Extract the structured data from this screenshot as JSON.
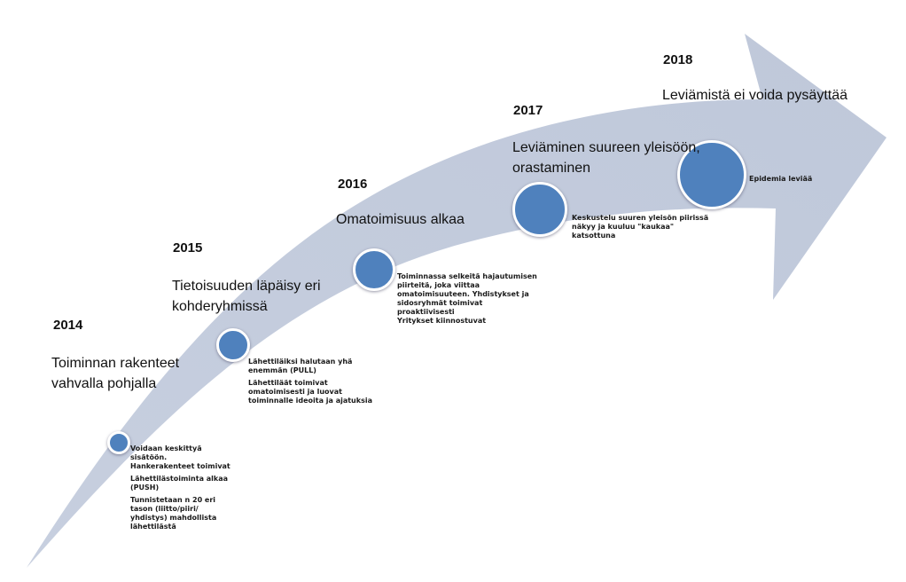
{
  "colors": {
    "arrow_fill": "#c3cbdc",
    "dot_fill": "#4f81bd",
    "dot_border": "#ffffff"
  },
  "milestones": [
    {
      "year": "2014",
      "phase": [
        "Toiminnan rakenteet",
        "vahvalla pohjalla"
      ],
      "notes": [
        [
          "Voidaan keskittyä",
          "sisätöön.",
          "Hankerakenteet toimivat"
        ],
        [
          "Lähettilästoiminta alkaa",
          "(PUSH)"
        ],
        [
          "Tunnistetaan n 20 eri",
          "tason (liitto/piiri/",
          "yhdistys) mahdollista",
          "lähettilästä"
        ]
      ]
    },
    {
      "year": "2015",
      "phase": [
        "Tietoisuuden läpäisy eri",
        "kohderyhmissä"
      ],
      "notes": [
        [
          "Lähettiläiksi halutaan yhä",
          "enemmän (PULL)"
        ],
        [
          "Lähettiläät toimivat",
          "omatoimisesti ja luovat",
          "toiminnalle ideoita ja ajatuksia"
        ]
      ]
    },
    {
      "year": "2016",
      "phase": [
        "Omatoimisuus alkaa"
      ],
      "notes": [
        [
          "Toiminnassa selkeitä hajautumisen",
          "piirteitä, joka viittaa",
          "omatoimisuuteen. Yhdistykset ja",
          "sidosryhmät toimivat",
          "proaktiivisesti",
          "Yritykset kiinnostuvat"
        ]
      ]
    },
    {
      "year": "2017",
      "phase": [
        "Leviäminen suureen yleisöön,",
        "orastaminen"
      ],
      "notes": [
        [
          "Keskustelu suuren yleisön piirissä",
          "näkyy ja kuuluu \"kaukaa\"",
          "katsottuna"
        ]
      ]
    },
    {
      "year": "2018",
      "phase": [
        "Leviämistä ei voida pysäyttää"
      ],
      "notes": [
        [
          "Epidemia leviää"
        ]
      ]
    }
  ]
}
